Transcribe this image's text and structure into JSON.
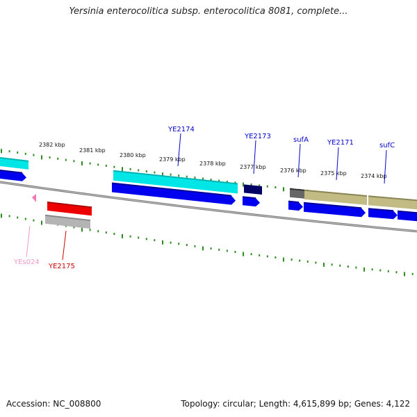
{
  "title": "Yersinia enterocolitica subsp. enterocolitica 8081, complete...",
  "footer": {
    "accession_label": "Accession:",
    "accession": "NC_008800",
    "topology_text": "Topology: circular; Length: 4,615,899 bp; Genes: 4,122"
  },
  "colors": {
    "backbone": "#777777",
    "tick": "#2e8b22",
    "cds": "#0000ee",
    "cyan": "#00e6e6",
    "teal": "#00b3b3",
    "navy": "#000066",
    "red": "#ee0000",
    "gray": "#b4b4b4",
    "olive": "#c2bb84",
    "darkgray": "#666666",
    "pink": "#f07ab4",
    "label_blue": "#0000cc",
    "label_red": "#cc0000",
    "label_pink": "#f096c8"
  },
  "scale": {
    "unit": "kbp",
    "labels": [
      "2382 kbp",
      "2381 kbp",
      "2380 kbp",
      "2379 kbp",
      "2378 kbp",
      "2377 kbp",
      "2376 kbp",
      "2375 kbp",
      "2374 kbp"
    ]
  },
  "genes": [
    {
      "name": "YE2174",
      "color_key": "label_blue"
    },
    {
      "name": "YE2173",
      "color_key": "label_blue"
    },
    {
      "name": "sufA",
      "color_key": "label_blue"
    },
    {
      "name": "YE2171",
      "color_key": "label_blue"
    },
    {
      "name": "sufC",
      "color_key": "label_blue"
    },
    {
      "name": "YEs024",
      "color_key": "label_pink"
    },
    {
      "name": "YE2175",
      "color_key": "label_red"
    }
  ]
}
